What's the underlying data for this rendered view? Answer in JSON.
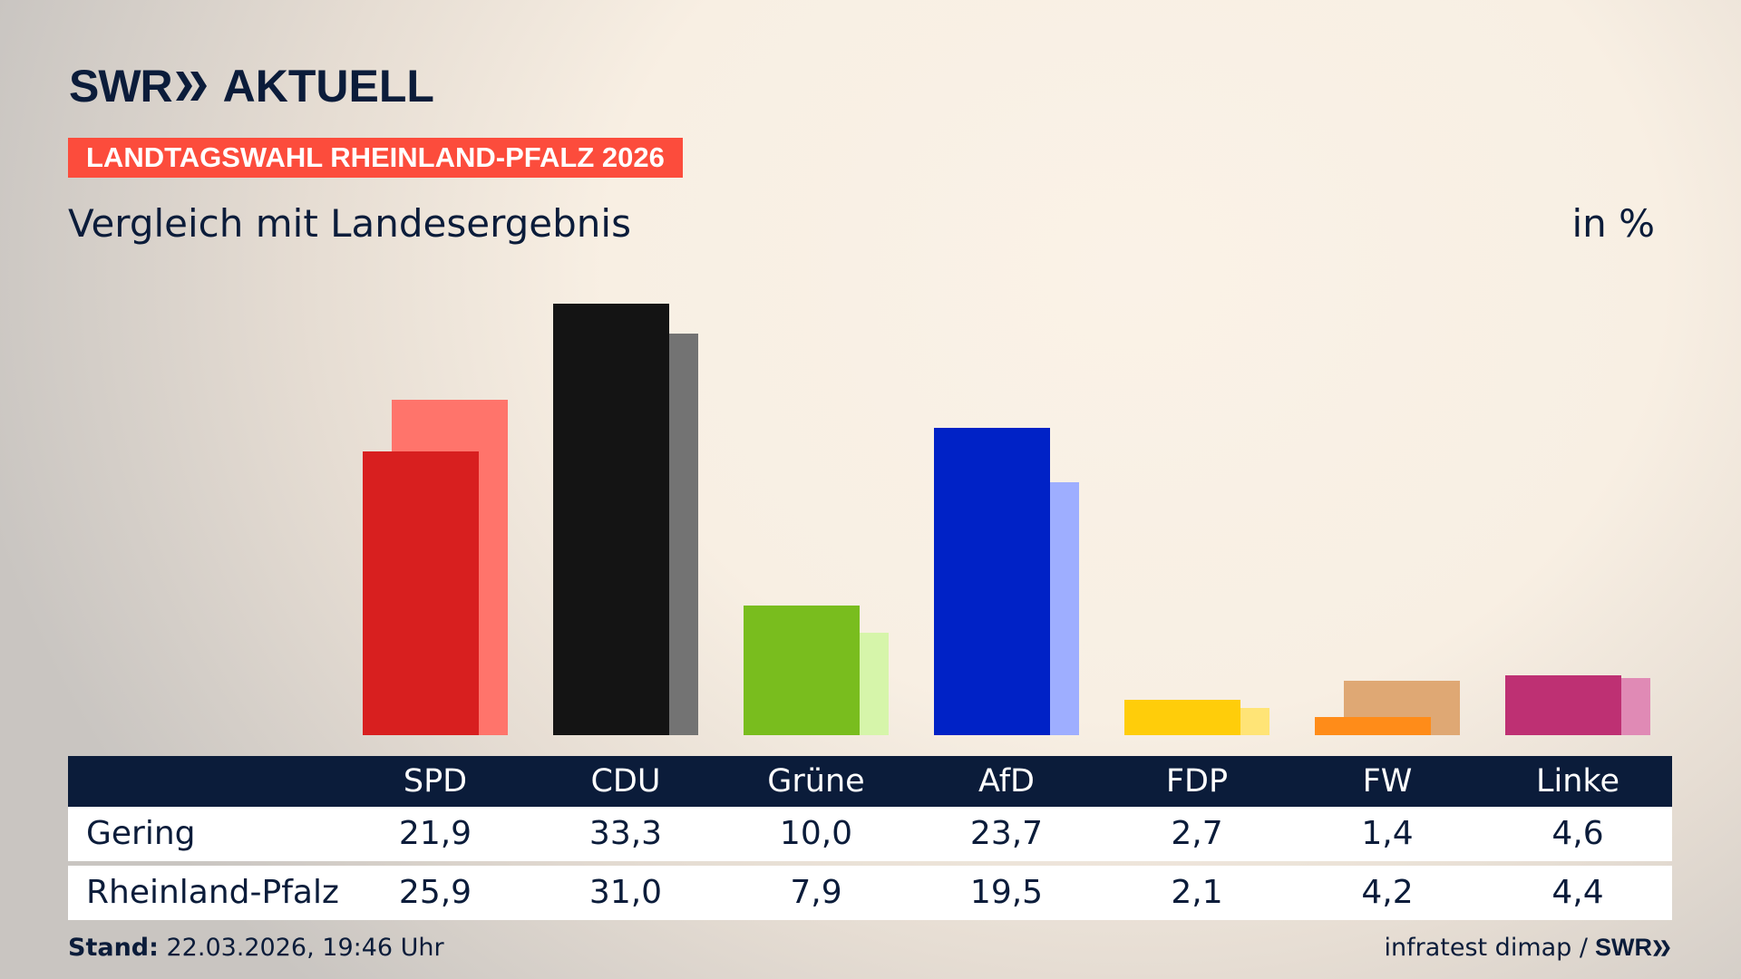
{
  "header": {
    "logo_text": "SWR",
    "logo_suffix": "AKTUELL",
    "badge": "LANDTAGSWAHL RHEINLAND-PFALZ 2026",
    "subtitle": "Vergleich mit Landesergebnis",
    "unit": "in %"
  },
  "chart_data": {
    "type": "bar",
    "title": "Vergleich mit Landesergebnis",
    "ylabel": "in %",
    "categories": [
      "SPD",
      "CDU",
      "Grüne",
      "AfD",
      "FDP",
      "FW",
      "Linke"
    ],
    "series": [
      {
        "name": "Gering",
        "values": [
          21.9,
          33.3,
          10.0,
          23.7,
          2.7,
          1.4,
          4.6
        ],
        "display": [
          "21,9",
          "33,3",
          "10,0",
          "23,7",
          "2,7",
          "1,4",
          "4,6"
        ],
        "colors": [
          "#d81f1f",
          "#141414",
          "#79bd1e",
          "#0022c6",
          "#ffcd0a",
          "#ff8c19",
          "#be3073"
        ]
      },
      {
        "name": "Rheinland-Pfalz",
        "values": [
          25.9,
          31.0,
          7.9,
          19.5,
          2.1,
          4.2,
          4.4
        ],
        "display": [
          "25,9",
          "31,0",
          "7,9",
          "19,5",
          "2,1",
          "4,2",
          "4,4"
        ],
        "colors": [
          "#ff746b",
          "#737373",
          "#d6f5aa",
          "#9eaeff",
          "#ffe476",
          "#dfa874",
          "#e08ab5"
        ]
      }
    ],
    "ylim": [
      0,
      33.3
    ],
    "grid": false,
    "legend": "table-below"
  },
  "footer": {
    "stand_label": "Stand:",
    "stand_value": " 22.03.2026, 19:46 Uhr",
    "source": "infratest dimap /",
    "source_logo": "SWR"
  }
}
